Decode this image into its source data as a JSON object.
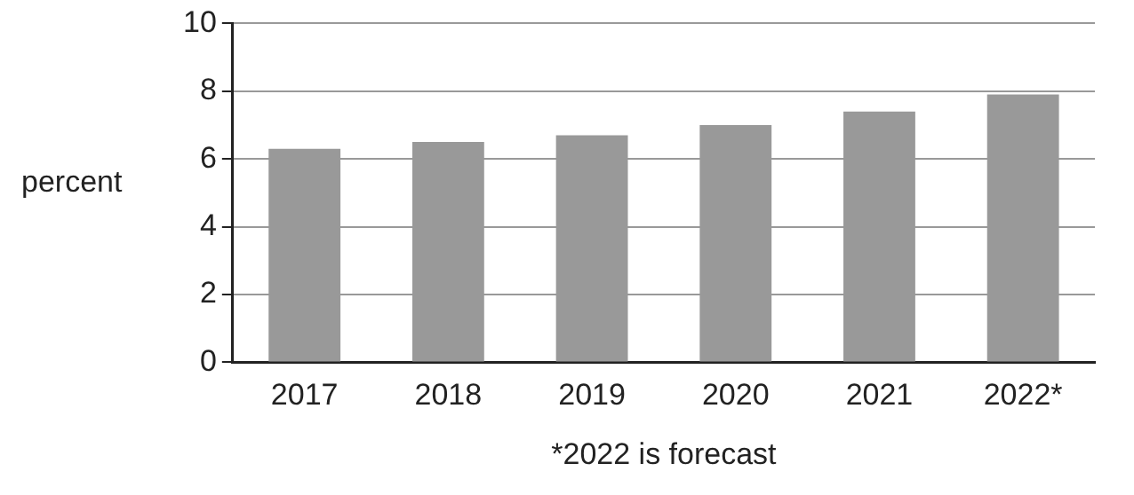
{
  "chart_data": {
    "type": "bar",
    "categories": [
      "2017",
      "2018",
      "2019",
      "2020",
      "2021",
      "2022*"
    ],
    "values": [
      6.3,
      6.5,
      6.7,
      7.0,
      7.4,
      7.9
    ],
    "color": "#999999",
    "ylabel": "percent",
    "xlabel": "*2022 is forecast",
    "ylim": [
      0,
      10
    ],
    "yticks": [
      0,
      2,
      4,
      6,
      8,
      10
    ],
    "grid": "y",
    "legend": false
  }
}
